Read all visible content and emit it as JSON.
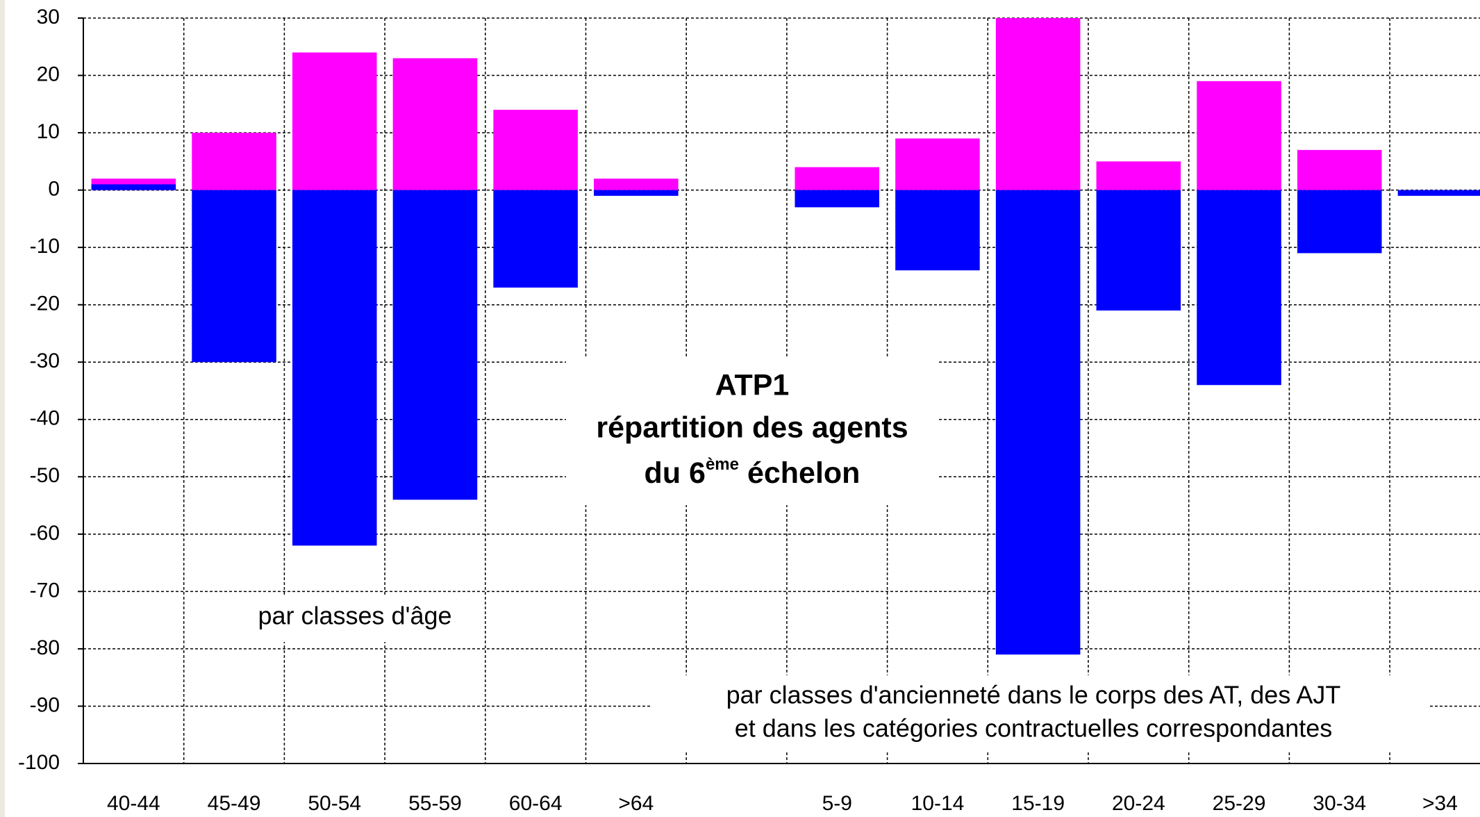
{
  "chart_data": {
    "type": "bar",
    "categories": [
      "40-44",
      "45-49",
      "50-54",
      "55-59",
      "60-64",
      ">64",
      null,
      "5-9",
      "10-14",
      "15-19",
      "20-24",
      "25-29",
      "30-34",
      ">34"
    ],
    "series": [
      {
        "color": "#ff00ff",
        "values": [
          2,
          10,
          24,
          23,
          14,
          2,
          null,
          4,
          9,
          30,
          5,
          19,
          7,
          null
        ]
      },
      {
        "color": "#0000ff",
        "values": [
          1,
          -30,
          -62,
          -54,
          -17,
          -1,
          null,
          -3,
          -14,
          -81,
          -21,
          -34,
          -11,
          -1
        ]
      }
    ],
    "ylim": [
      -100,
      30
    ],
    "yticks": [
      -100,
      -90,
      -80,
      -70,
      -60,
      -50,
      -40,
      -30,
      -20,
      -10,
      0,
      10,
      20,
      30
    ],
    "grid": true,
    "annotations": {
      "title": [
        "ATP1",
        "répartition des agents",
        [
          "du 6",
          "ème",
          " échelon"
        ]
      ],
      "age": "par classes d'âge",
      "seniority": [
        "par classes d'ancienneté dans le corps des AT, des AJT",
        "et dans les catégories contractuelles correspondantes"
      ]
    }
  }
}
